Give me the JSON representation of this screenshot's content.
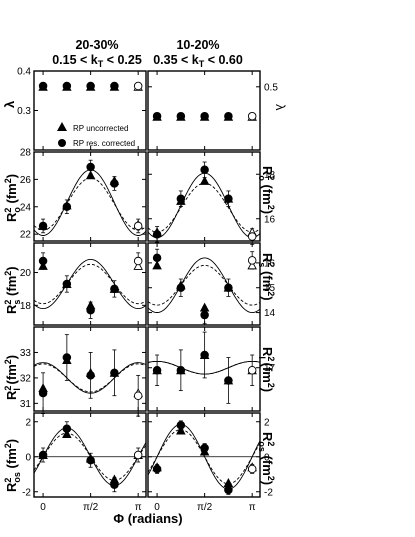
{
  "header": {
    "left_line1": "20-30%",
    "left_line2": "0.15 < k",
    "left_sub": "T",
    "left_line2_end": " < 0.25",
    "right_line1": "10-20%",
    "right_line2": "0.35 < k",
    "right_sub": "T",
    "right_line2_end": " < 0.60"
  },
  "legend": {
    "triangle_label": "RP uncorrected",
    "circle_label": "RP res. corrected"
  },
  "x_axis": {
    "label": "Φ (radians)",
    "ticks": [
      {
        "value": 0,
        "label": "0"
      },
      {
        "value": 1.5708,
        "label": "π/2"
      },
      {
        "value": 3.1416,
        "label": "π"
      }
    ]
  },
  "chart_data": {
    "type": "scatter",
    "x": [
      0,
      0.3927,
      0.7854,
      1.1781,
      1.5708,
      1.9635,
      2.3562,
      2.7489,
      3.1416
    ],
    "rows": [
      {
        "key": "lambda",
        "left_ylabel": "λ",
        "right_ylabel": "λ",
        "left": {
          "ylim": [
            0.2,
            0.4
          ],
          "ticks": [
            {
              "v": 0.4,
              "l": "0.4"
            },
            {
              "v": 0.3,
              "l": "0.3"
            }
          ],
          "x": [
            0,
            0.7854,
            1.5708,
            2.3562,
            3.1416
          ],
          "triangle": [
            0.36,
            0.36,
            0.36,
            0.36,
            0.36
          ],
          "circle": [
            0.362,
            0.362,
            0.362,
            0.362,
            0.362
          ],
          "circle_err": [
            0.004,
            0.004,
            0.004,
            0.004,
            0.004
          ],
          "open_index": 4
        },
        "right": {
          "ylim": [
            0.3,
            0.55
          ],
          "ticks": [
            {
              "v": 0.5,
              "l": "0.5"
            }
          ],
          "x": [
            0,
            0.7854,
            1.5708,
            2.3562,
            3.1416
          ],
          "triangle": [
            0.405,
            0.405,
            0.405,
            0.405,
            0.405
          ],
          "circle": [
            0.407,
            0.407,
            0.407,
            0.407,
            0.407
          ],
          "circle_err": [
            0.004,
            0.004,
            0.004,
            0.004,
            0.004
          ],
          "open_index": 4
        }
      },
      {
        "key": "Ro",
        "left_ylabel": "R",
        "left_sup": "2",
        "left_sub": "o",
        "left_unit": " (fm",
        "right_ylabel": "R",
        "right_sup": "2",
        "right_sub": "o",
        "right_unit": " (fm",
        "left": {
          "ylim": [
            21.5,
            28
          ],
          "ticks": [
            {
              "v": 28,
              "l": "28"
            },
            {
              "v": 26,
              "l": "26"
            },
            {
              "v": 24,
              "l": "24"
            },
            {
              "v": 22,
              "l": "22"
            }
          ],
          "x": [
            0,
            0.7854,
            1.5708,
            2.3562,
            3.1416
          ],
          "triangle": [
            22.6,
            24.1,
            26.3,
            25.9,
            22.7
          ],
          "circle": [
            22.6,
            24.0,
            26.9,
            25.7,
            22.6
          ],
          "circle_err": [
            0.5,
            0.5,
            0.5,
            0.5,
            0.5
          ],
          "open_index": 4,
          "fit_triangle": {
            "mean": 24.2,
            "amp": 1.9
          },
          "fit_circle": {
            "mean": 24.3,
            "amp": 2.4
          }
        },
        "right": {
          "ylim": [
            15.0,
            19.0
          ],
          "ticks": [
            {
              "v": 18,
              "l": "18"
            },
            {
              "v": 16,
              "l": "16"
            }
          ],
          "x": [
            0,
            0.7854,
            1.5708,
            2.3562,
            3.1416
          ],
          "triangle": [
            15.4,
            16.8,
            17.7,
            16.9,
            15.4
          ],
          "circle": [
            15.3,
            16.9,
            18.2,
            16.9,
            15.2
          ],
          "circle_err": [
            0.35,
            0.35,
            0.35,
            0.35,
            0.35
          ],
          "open_index": 4,
          "fit_triangle": {
            "mean": 16.5,
            "amp": 1.1
          },
          "fit_circle": {
            "mean": 16.6,
            "amp": 1.45
          }
        }
      },
      {
        "key": "Rs",
        "left_ylabel": "R",
        "left_sup": "2",
        "left_sub": "s",
        "left_unit": " (fm",
        "right_ylabel": "R",
        "right_sup": "2",
        "right_sub": "s",
        "right_unit": " (fm",
        "left": {
          "ylim": [
            16.8,
            21.8
          ],
          "ticks": [
            {
              "v": 20,
              "l": "20"
            },
            {
              "v": 18,
              "l": "18"
            }
          ],
          "x": [
            0,
            0.7854,
            1.5708,
            2.3562,
            3.1416
          ],
          "triangle": [
            20.4,
            19.3,
            18.0,
            19.0,
            20.4
          ],
          "circle": [
            20.7,
            19.3,
            17.7,
            19.0,
            20.7
          ],
          "circle_err": [
            0.5,
            0.5,
            0.5,
            0.5,
            0.5
          ],
          "open_index": 4,
          "fit_triangle": {
            "mean": 19.3,
            "amp": 1.2
          },
          "fit_circle": {
            "mean": 19.3,
            "amp": 1.5
          }
        },
        "right": {
          "ylim": [
            13.5,
            16.8
          ],
          "ticks": [
            {
              "v": 16,
              "l": "16"
            },
            {
              "v": 15,
              "l": "15"
            },
            {
              "v": 14,
              "l": "14"
            }
          ],
          "x": [
            0,
            0.7854,
            1.5708,
            2.3562,
            3.1416
          ],
          "triangle": [
            15.9,
            15.1,
            14.2,
            15.0,
            15.9
          ],
          "circle": [
            16.2,
            15.0,
            13.9,
            15.0,
            16.1
          ],
          "circle_err": [
            0.35,
            0.35,
            0.35,
            0.35,
            0.35
          ],
          "open_index": 4,
          "fit_triangle": {
            "mean": 15.1,
            "amp": 0.8
          },
          "fit_circle": {
            "mean": 15.1,
            "amp": 1.1
          }
        }
      },
      {
        "key": "Rl",
        "left_ylabel": "R",
        "left_sup": "2",
        "left_sub": "l",
        "left_unit": " (fm",
        "right_ylabel": "R",
        "right_sup": "2",
        "right_sub": "l",
        "right_unit": " (fm",
        "left": {
          "ylim": [
            30.7,
            34.0
          ],
          "ticks": [
            {
              "v": 33,
              "l": "33"
            },
            {
              "v": 32,
              "l": "32"
            },
            {
              "v": 31,
              "l": "31"
            }
          ],
          "x": [
            0,
            0.7854,
            1.5708,
            2.3562,
            3.1416
          ],
          "triangle": [
            31.6,
            32.7,
            32.2,
            32.2,
            31.4
          ],
          "circle": [
            31.4,
            32.8,
            32.1,
            32.2,
            31.3
          ],
          "circle_err": [
            0.8,
            0.9,
            0.9,
            0.9,
            0.8
          ],
          "open_index": 4,
          "fit_triangle": {
            "mean": 32.0,
            "amp": -0.55
          },
          "fit_circle": {
            "mean": 32.0,
            "amp": -0.6
          }
        },
        "right": {
          "ylim": [
            15.3,
            18.6
          ],
          "ticks": [
            {
              "v": 17,
              "l": "17"
            }
          ],
          "x": [
            0,
            0.7854,
            1.5708,
            2.3562,
            3.1416
          ],
          "triangle": [
            16.9,
            16.9,
            17.5,
            16.5,
            16.9
          ],
          "circle": [
            16.9,
            16.9,
            17.5,
            16.5,
            16.9
          ],
          "circle_err": [
            0.6,
            0.8,
            0.9,
            0.9,
            0.6
          ],
          "open_index": 4,
          "fit_triangle": {
            "mean": 17.0,
            "amp": -0.25
          },
          "fit_circle": {
            "mean": 17.0,
            "amp": -0.25
          }
        }
      },
      {
        "key": "Ros",
        "left_ylabel": "R",
        "left_sup": "2",
        "left_sub": "os",
        "left_unit": " (fm",
        "right_ylabel": "R",
        "right_sup": "2",
        "right_sub": "os",
        "right_unit": " (fm",
        "left": {
          "ylim": [
            -2.3,
            2.5
          ],
          "ticks": [
            {
              "v": 2,
              "l": "2"
            },
            {
              "v": 0,
              "l": "0"
            },
            {
              "v": -2,
              "l": "-2"
            }
          ],
          "x": [
            0,
            0.7854,
            1.5708,
            2.3562,
            3.1416
          ],
          "triangle": [
            0.1,
            1.3,
            -0.1,
            -1.3,
            0.1
          ],
          "circle": [
            0.1,
            1.6,
            -0.2,
            -1.6,
            0.1
          ],
          "circle_err": [
            0.4,
            0.4,
            0.4,
            0.4,
            0.4
          ],
          "open_index": 4,
          "fit_triangle": {
            "amp": 1.35
          },
          "fit_circle": {
            "amp": 1.65
          }
        },
        "right": {
          "ylim": [
            -2.3,
            2.5
          ],
          "ticks": [
            {
              "v": 2,
              "l": "2"
            },
            {
              "v": 0,
              "l": "0"
            },
            {
              "v": -2,
              "l": "-2"
            }
          ],
          "x": [
            0,
            0.7854,
            1.5708,
            2.3562,
            3.1416
          ],
          "triangle": [
            -0.6,
            1.5,
            0.3,
            -1.5,
            -0.6
          ],
          "circle": [
            -0.7,
            1.8,
            0.5,
            -1.9,
            -0.7
          ],
          "circle_err": [
            0.25,
            0.25,
            0.25,
            0.25,
            0.25
          ],
          "open_index": 4,
          "fit_triangle": {
            "amp": 1.55
          },
          "fit_circle": {
            "amp": 1.85
          }
        }
      }
    ]
  }
}
